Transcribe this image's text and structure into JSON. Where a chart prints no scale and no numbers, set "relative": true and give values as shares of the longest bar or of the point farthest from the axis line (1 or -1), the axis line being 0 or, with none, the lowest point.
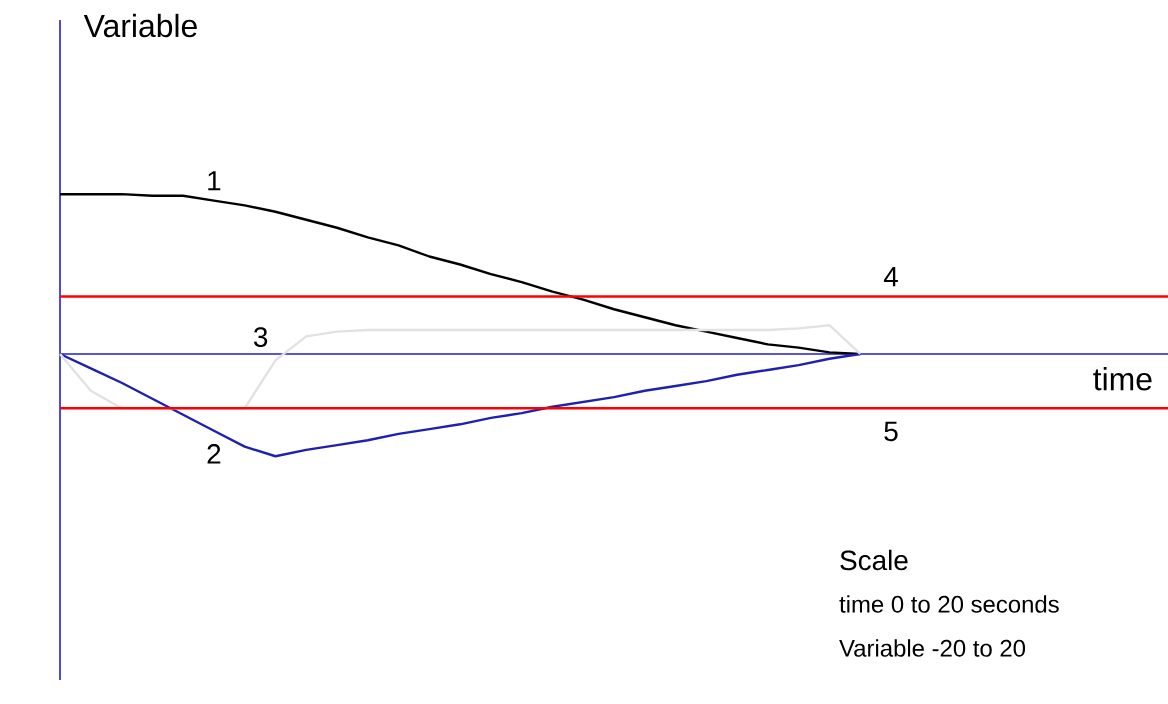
{
  "chart_data": {
    "type": "line",
    "relative": true,
    "ylabel": "Variable",
    "categories": [
      null,
      null,
      null,
      null,
      null,
      null,
      null,
      null,
      null,
      null,
      null,
      null,
      null,
      null,
      null,
      null,
      null,
      null,
      null,
      null,
      null,
      null,
      null,
      null,
      null,
      null,
      null,
      null,
      null,
      null,
      null,
      null,
      null,
      null,
      null,
      null,
      null
    ],
    "series": [
      {
        "name": "1",
        "color": "#000000",
        "values": [
          1.0,
          1.0,
          1.0,
          0.99,
          0.99,
          0.96,
          0.93,
          0.89,
          0.84,
          0.79,
          0.73,
          0.68,
          0.61,
          0.56,
          0.5,
          0.45,
          0.39,
          0.34,
          0.28,
          0.23,
          0.18,
          0.14,
          0.1,
          0.06,
          0.04,
          0.01,
          0,
          null,
          null,
          null,
          null,
          null,
          null,
          null,
          null,
          null,
          null
        ]
      },
      {
        "name": "2",
        "color": "#2020b0",
        "values": [
          0,
          -0.09,
          -0.18,
          -0.28,
          -0.38,
          -0.48,
          -0.58,
          -0.64,
          -0.6,
          -0.57,
          -0.54,
          -0.5,
          -0.47,
          -0.44,
          -0.4,
          -0.37,
          -0.33,
          -0.3,
          -0.27,
          -0.23,
          -0.2,
          -0.17,
          -0.13,
          -0.1,
          -0.07,
          -0.03,
          0,
          null,
          null,
          null,
          null,
          null,
          null,
          null,
          null,
          null,
          null
        ]
      },
      {
        "name": "3",
        "color": "#e2e2e2",
        "values": [
          0,
          -0.23,
          -0.34,
          -0.34,
          -0.34,
          -0.34,
          -0.34,
          -0.04,
          0.11,
          0.14,
          0.15,
          0.15,
          0.15,
          0.15,
          0.15,
          0.15,
          0.15,
          0.15,
          0.15,
          0.15,
          0.15,
          0.15,
          0.15,
          0.15,
          0.16,
          0.18,
          0,
          null,
          null,
          null,
          null,
          null,
          null,
          null,
          null,
          null,
          null
        ]
      },
      {
        "name": "4",
        "color": "#ff0000",
        "values": [
          0.36,
          0.36,
          0.36,
          0.36,
          0.36,
          0.36,
          0.36,
          0.36,
          0.36,
          0.36,
          0.36,
          0.36,
          0.36,
          0.36,
          0.36,
          0.36,
          0.36,
          0.36,
          0.36,
          0.36,
          0.36,
          0.36,
          0.36,
          0.36,
          0.36,
          0.36,
          0.36,
          0.36,
          0.36,
          0.36,
          0.36,
          0.36,
          0.36,
          0.36,
          0.36,
          0.36,
          0.36
        ]
      },
      {
        "name": "5",
        "color": "#ff0000",
        "values": [
          -0.34,
          -0.34,
          -0.34,
          -0.34,
          -0.34,
          -0.34,
          -0.34,
          -0.34,
          -0.34,
          -0.34,
          -0.34,
          -0.34,
          -0.34,
          -0.34,
          -0.34,
          -0.34,
          -0.34,
          -0.34,
          -0.34,
          -0.34,
          -0.34,
          -0.34,
          -0.34,
          -0.34,
          -0.34,
          -0.34,
          -0.34,
          -0.34,
          -0.34,
          -0.34,
          -0.34,
          -0.34,
          -0.34,
          -0.34,
          -0.34,
          -0.34,
          -0.34
        ]
      }
    ],
    "ref_lines": [
      {
        "axis": "y",
        "value": 0,
        "color": "#2020c8"
      }
    ],
    "annotations": [
      "time",
      "Scale",
      "time 0 to 20 seconds",
      "Variable -20 to 20"
    ],
    "legend": false,
    "marker": "none",
    "line_style": "solid"
  }
}
